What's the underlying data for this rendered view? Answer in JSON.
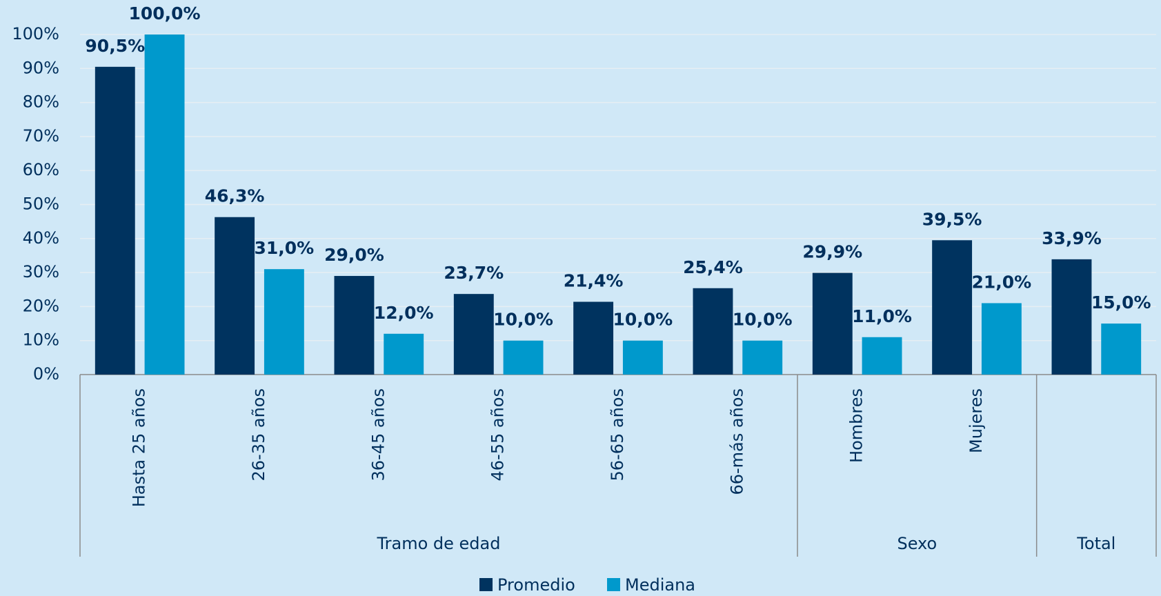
{
  "chart_data": {
    "type": "bar",
    "groups": [
      {
        "name": "Tramo de edad",
        "categories": [
          "Hasta 25 años",
          "26-35 años",
          "36-45 años",
          "46-55 años",
          "56-65 años",
          "66-más años"
        ]
      },
      {
        "name": "Sexo",
        "categories": [
          "Hombres",
          "Mujeres"
        ]
      },
      {
        "name": "Total",
        "categories": [
          null
        ]
      }
    ],
    "series": [
      {
        "name": "Promedio",
        "color": "#00335f",
        "values": [
          90.5,
          46.3,
          29.0,
          23.7,
          21.4,
          25.4,
          29.9,
          39.5,
          33.9
        ],
        "value_labels": [
          "90,5%",
          "46,3%",
          "29,0%",
          "23,7%",
          "21,4%",
          "25,4%",
          "29,9%",
          "39,5%",
          "33,9%"
        ]
      },
      {
        "name": "Mediana",
        "color": "#0099cc",
        "values": [
          100,
          31,
          12,
          10,
          10,
          10,
          11,
          21,
          15
        ],
        "value_labels": [
          "100,0%",
          "31,0%",
          "12,0%",
          "10,0%",
          "10,0%",
          "10,0%",
          "11,0%",
          "21,0%",
          "15,0%"
        ]
      }
    ],
    "ylim": [
      0,
      100
    ],
    "yticks": [
      {
        "value": 0,
        "label": "0%"
      },
      {
        "value": 10,
        "label": "10%"
      },
      {
        "value": 20,
        "label": "20%"
      },
      {
        "value": 30,
        "label": "30%"
      },
      {
        "value": 40,
        "label": "40%"
      },
      {
        "value": 50,
        "label": "50%"
      },
      {
        "value": 60,
        "label": "60%"
      },
      {
        "value": 70,
        "label": "70%"
      },
      {
        "value": 80,
        "label": "80%"
      },
      {
        "value": 90,
        "label": "90%"
      },
      {
        "value": 100,
        "label": "100%"
      }
    ],
    "grid": true,
    "legend": "bottom"
  }
}
